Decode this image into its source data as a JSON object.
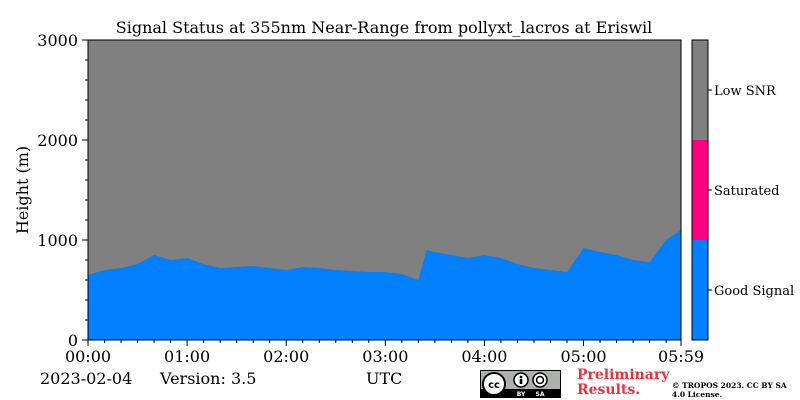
{
  "chart_data": {
    "type": "heatmap",
    "title": "Signal Status at 355nm Near-Range from pollyxt_lacros at Eriswil",
    "xlabel": "UTC",
    "ylabel": "Height (m)",
    "x_tick_labels": [
      "00:00",
      "01:00",
      "02:00",
      "03:00",
      "04:00",
      "05:00",
      "05:59"
    ],
    "x_tick_values_min": [
      0,
      60,
      120,
      180,
      240,
      300,
      359
    ],
    "xlim_min": [
      0,
      359
    ],
    "y_ticks": [
      0,
      1000,
      2000,
      3000
    ],
    "ylim": [
      0,
      3000
    ],
    "legend_position": "right-colorbar",
    "categories": [
      {
        "label": "Good Signal",
        "color": "#0080ff"
      },
      {
        "label": "Saturated",
        "color": "#ff0080"
      },
      {
        "label": "Low SNR",
        "color": "#808080"
      }
    ],
    "good_signal_top_profile": {
      "time_min": [
        0,
        10,
        20,
        30,
        40,
        50,
        60,
        70,
        80,
        90,
        100,
        110,
        120,
        130,
        140,
        150,
        160,
        170,
        180,
        190,
        200,
        205,
        210,
        220,
        230,
        240,
        250,
        260,
        270,
        280,
        290,
        300,
        310,
        320,
        330,
        340,
        350,
        359
      ],
      "height_m": [
        650,
        700,
        720,
        760,
        850,
        800,
        820,
        760,
        720,
        730,
        740,
        720,
        700,
        730,
        720,
        700,
        690,
        680,
        680,
        660,
        600,
        900,
        880,
        850,
        820,
        850,
        820,
        760,
        720,
        700,
        680,
        920,
        880,
        850,
        800,
        780,
        1000,
        1100
      ]
    },
    "footer": {
      "date": "2023-02-04",
      "version": "Version: 3.5",
      "preliminary": "Preliminary Results.",
      "copyright": "© TROPOS 2023. CC BY SA 4.0 License.",
      "badge": [
        "BY",
        "SA"
      ]
    }
  }
}
